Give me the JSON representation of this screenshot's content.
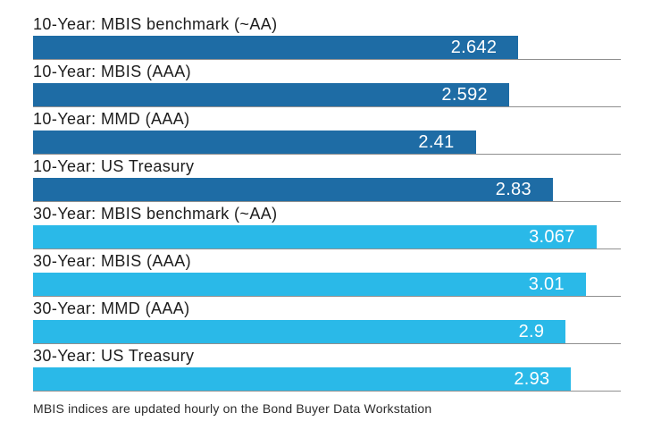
{
  "chart_data": {
    "type": "bar",
    "orientation": "horizontal",
    "categories": [
      "10-Year: MBIS benchmark (~AA)",
      "10-Year: MBIS (AAA)",
      "10-Year: MMD (AAA)",
      "10-Year: US Treasury",
      "30-Year: MBIS benchmark (~AA)",
      "30-Year: MBIS (AAA)",
      "30-Year: MMD (AAA)",
      "30-Year: US Treasury"
    ],
    "values": [
      2.642,
      2.592,
      2.41,
      2.83,
      3.067,
      3.01,
      2.9,
      2.93
    ],
    "value_labels": [
      "2.642",
      "2.592",
      "2.41",
      "2.83",
      "3.067",
      "3.01",
      "2.9",
      "2.93"
    ],
    "bar_colors": [
      "#1E6CA5",
      "#1E6CA5",
      "#1E6CA5",
      "#1E6CA5",
      "#2AB9E8",
      "#2AB9E8",
      "#2AB9E8",
      "#2AB9E8"
    ],
    "series_colors": {
      "ten_year": "#1E6CA5",
      "thirty_year": "#2AB9E8"
    },
    "xlim": [
      0,
      3.2
    ],
    "gridline_color": "#8F8F8F",
    "value_label_color": "#FFFFFF",
    "grid": "category separators under each bar",
    "legend": "none",
    "title": "",
    "xlabel": "",
    "ylabel": "",
    "footnote": "MBIS indices are updated hourly on the Bond Buyer Data Workstation"
  }
}
